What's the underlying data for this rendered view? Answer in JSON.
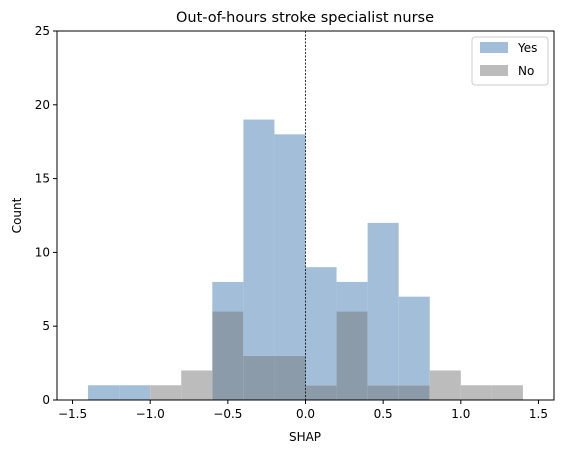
{
  "chart_data": {
    "type": "histogram",
    "title": "Out-of-hours stroke specialist nurse",
    "xlabel": "SHAP",
    "ylabel": "Count",
    "xlim": [
      -1.6,
      1.6
    ],
    "ylim": [
      0,
      25
    ],
    "xticks": [
      -1.5,
      -1.0,
      -0.5,
      0.0,
      0.5,
      1.0,
      1.5
    ],
    "xtick_labels": [
      "−1.5",
      "−1.0",
      "−0.5",
      "0.0",
      "0.5",
      "1.0",
      "1.5"
    ],
    "yticks": [
      0,
      5,
      10,
      15,
      20,
      25
    ],
    "ytick_labels": [
      "0",
      "5",
      "10",
      "15",
      "20",
      "25"
    ],
    "grid": false,
    "legend_position": "top-right",
    "reference_line_x": 0.0,
    "bins": [
      -1.4,
      -1.2,
      -1.0,
      -0.8,
      -0.6,
      -0.4,
      -0.2,
      0.0,
      0.2,
      0.4,
      0.6,
      0.8,
      1.0,
      1.2,
      1.4
    ],
    "series": [
      {
        "name": "Yes",
        "color": "#a2bed8",
        "counts": [
          1,
          1,
          0,
          0,
          8,
          19,
          18,
          9,
          8,
          12,
          7,
          0,
          0,
          0
        ]
      },
      {
        "name": "No",
        "color": "#bcbcbc",
        "counts": [
          0,
          0,
          1,
          2,
          6,
          3,
          3,
          1,
          6,
          1,
          1,
          2,
          1,
          1
        ]
      }
    ],
    "overlap_color": "#8c9ba9"
  }
}
